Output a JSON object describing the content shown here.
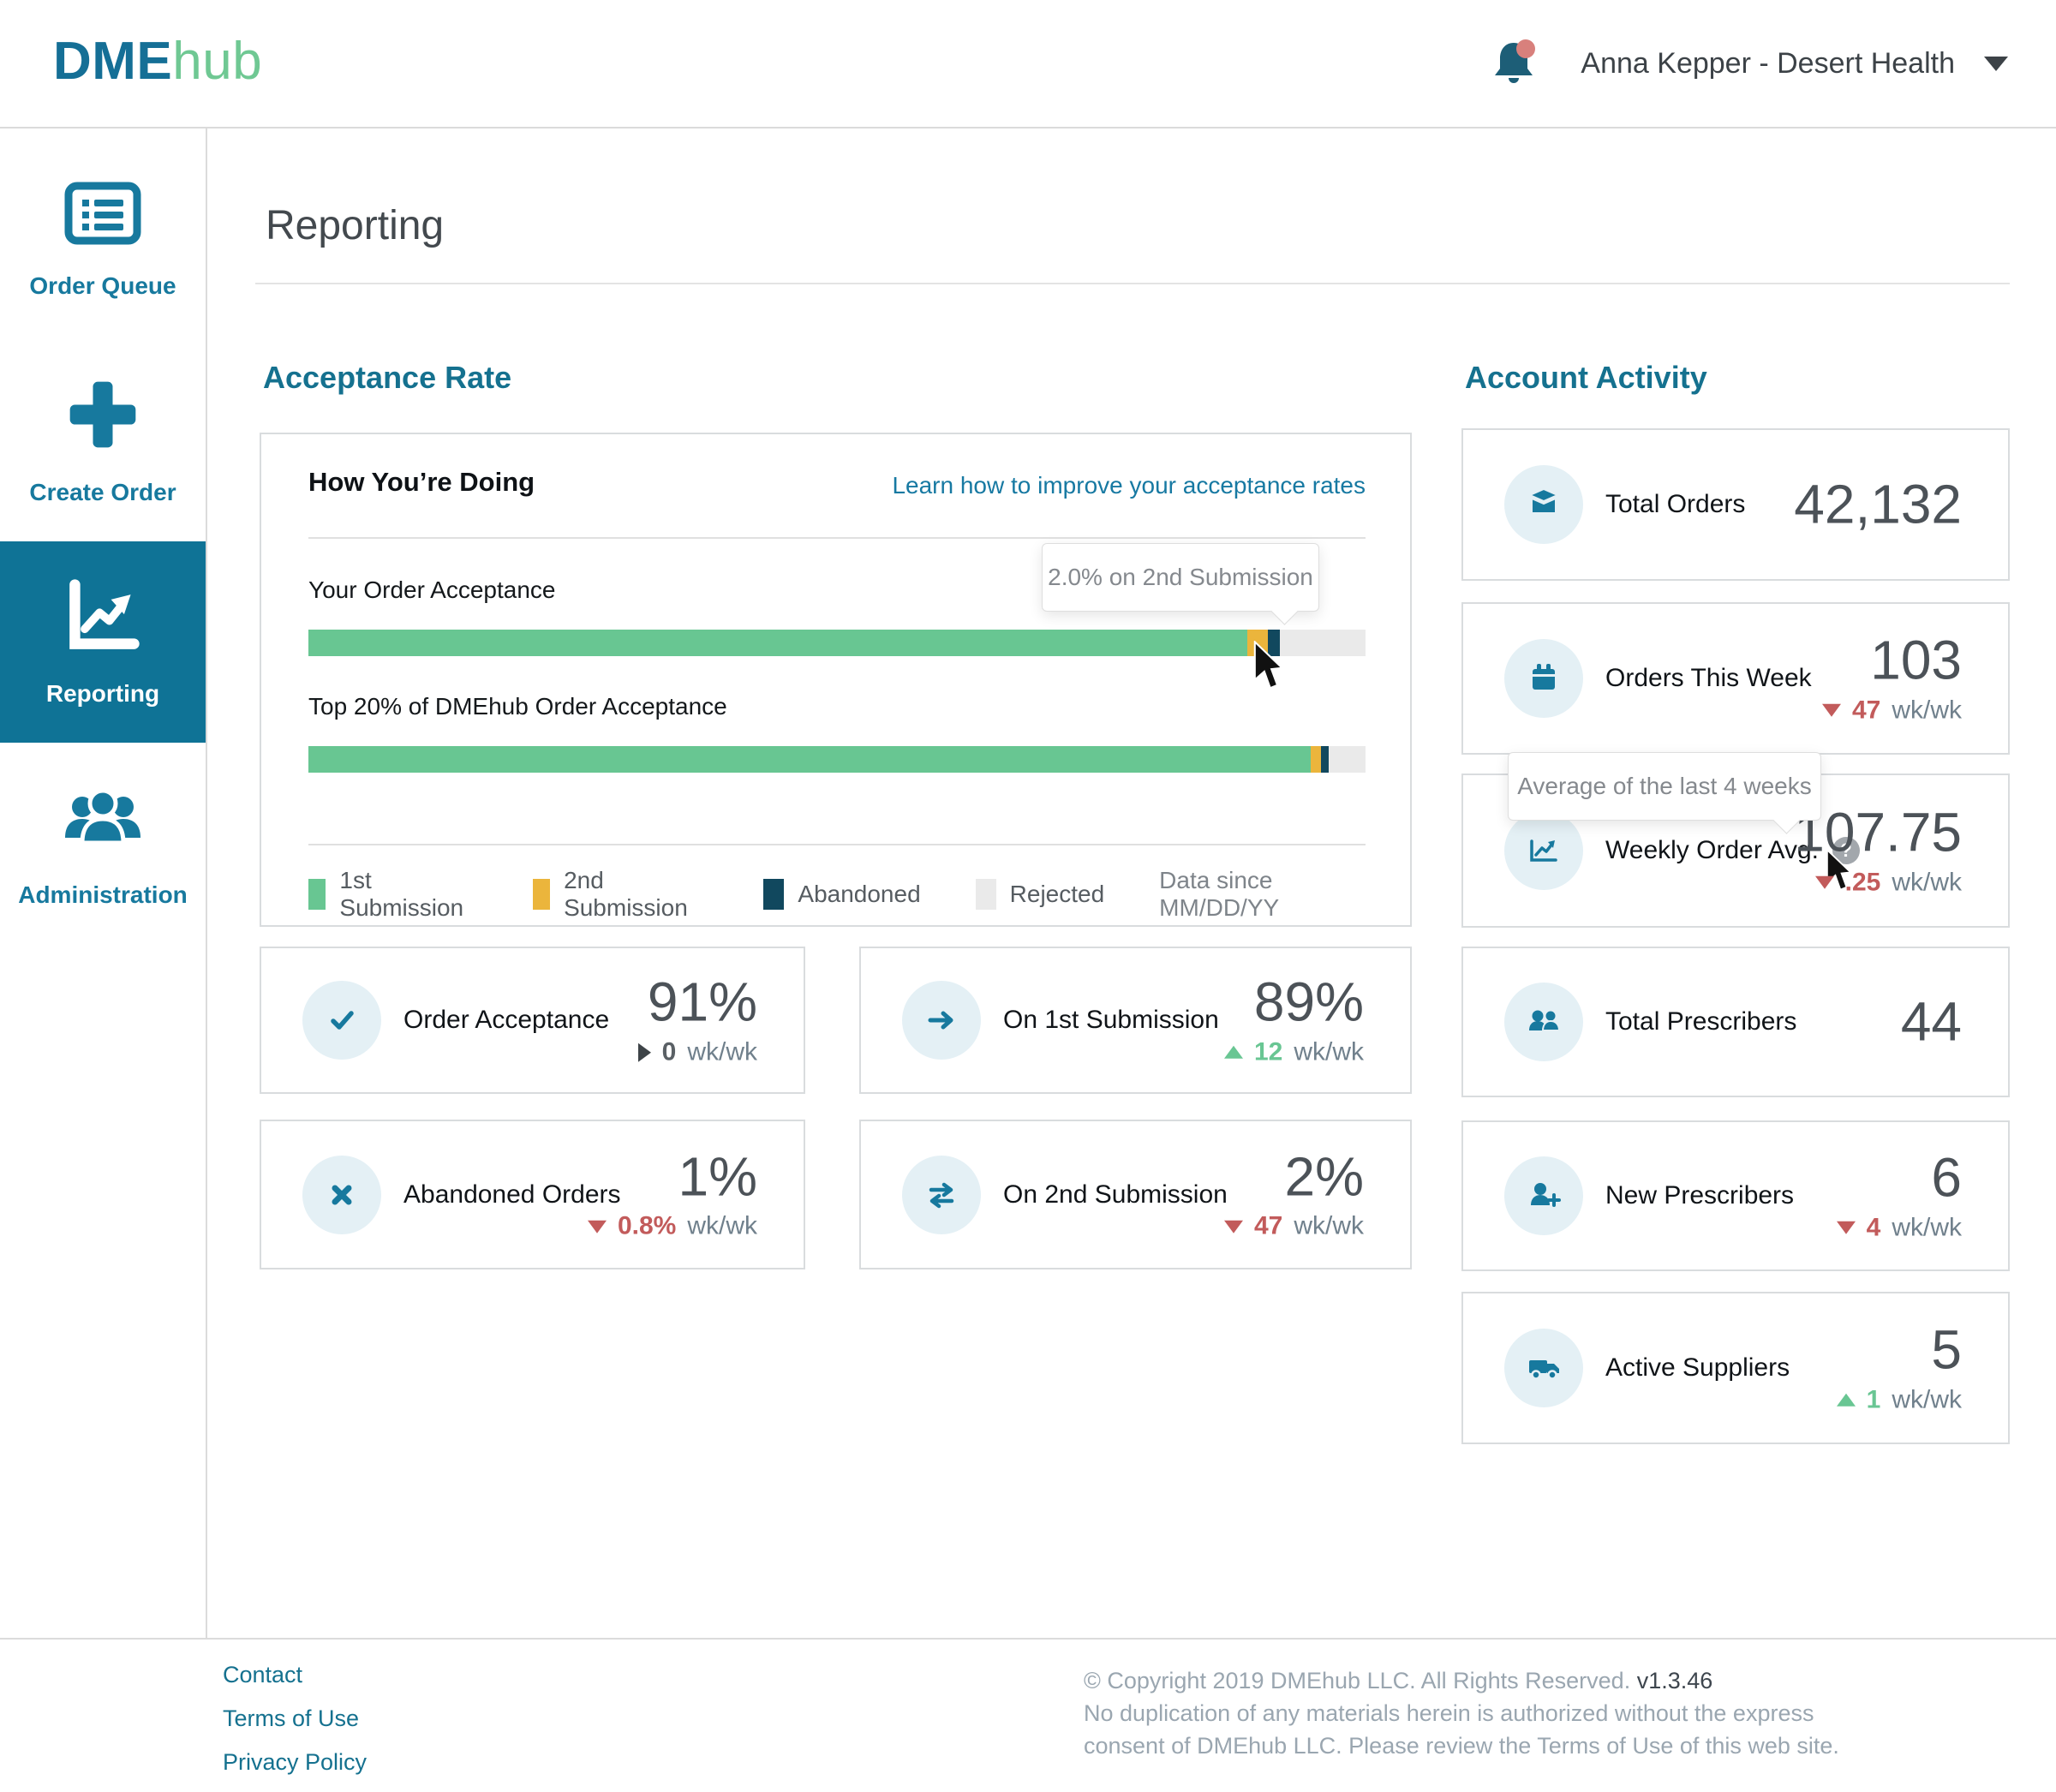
{
  "header": {
    "logo_part1": "DME",
    "logo_part2": "hub",
    "user_name": "Anna Kepper - Desert Health"
  },
  "sidebar": {
    "items": [
      {
        "label": "Order Queue",
        "active": false
      },
      {
        "label": "Create Order",
        "active": false
      },
      {
        "label": "Reporting",
        "active": true
      },
      {
        "label": "Administration",
        "active": false
      }
    ]
  },
  "page": {
    "title": "Reporting"
  },
  "acceptance_rate": {
    "section_title": "Acceptance Rate",
    "card": {
      "title": "How You’re Doing",
      "link_label": "Learn how to improve your acceptance rates",
      "tooltip": "2.0% on 2nd Submission",
      "bars": [
        {
          "label": "Your Order Acceptance",
          "first_pct": 88.8,
          "second_pct": 2.0,
          "abandoned_pct": 1.1,
          "rejected_pct": 8.1
        },
        {
          "label": "Top 20% of DMEhub Order Acceptance",
          "first_pct": 94.8,
          "second_pct": 1.0,
          "abandoned_pct": 0.7,
          "rejected_pct": 3.5
        }
      ],
      "legend": [
        {
          "label": "1st Submission",
          "color": "#68C692"
        },
        {
          "label": "2nd Submission",
          "color": "#EBB53C"
        },
        {
          "label": "Abandoned",
          "color": "#11485E"
        },
        {
          "label": "Rejected",
          "color": "#EAEAEA"
        }
      ],
      "data_since": "Data since MM/DD/YY"
    },
    "stats": [
      {
        "label": "Order Acceptance",
        "value": "91%",
        "delta": "0",
        "delta_dir": "flat",
        "unit": "wk/wk"
      },
      {
        "label": "On 1st Submission",
        "value": "89%",
        "delta": "12",
        "delta_dir": "up",
        "unit": "wk/wk"
      },
      {
        "label": "Abandoned Orders",
        "value": "1%",
        "delta": "0.8%",
        "delta_dir": "down",
        "unit": "wk/wk"
      },
      {
        "label": "On 2nd Submission",
        "value": "2%",
        "delta": "47",
        "delta_dir": "down",
        "unit": "wk/wk"
      }
    ]
  },
  "account_activity": {
    "section_title": "Account Activity",
    "tooltip": "Average of the last 4 weeks",
    "cards": [
      {
        "label": "Total Orders",
        "value": "42,132"
      },
      {
        "label": "Orders This Week",
        "value": "103",
        "delta": "47",
        "delta_dir": "down",
        "unit": "wk/wk"
      },
      {
        "label": "Weekly Order Avg.",
        "value": "107.75",
        "delta": ".25",
        "delta_dir": "down",
        "unit": "wk/wk",
        "help": "?"
      },
      {
        "label": "Total Prescribers",
        "value": "44"
      },
      {
        "label": "New Prescribers",
        "value": "6",
        "delta": "4",
        "delta_dir": "down",
        "unit": "wk/wk"
      },
      {
        "label": "Active Suppliers",
        "value": "5",
        "delta": "1",
        "delta_dir": "up",
        "unit": "wk/wk"
      }
    ]
  },
  "footer": {
    "links": [
      "Contact",
      "Terms of Use",
      "Privacy Policy"
    ],
    "copyright": "© Copyright 2019 DMEhub LLC. All Rights Reserved.",
    "version": "v1.3.46",
    "disclaimer": "No duplication of any materials herein is authorized without the express consent of DMEhub LLC. Please review the Terms of Use of this web site."
  },
  "colors": {
    "brand_teal": "#17799E",
    "section_heading": "#15718F",
    "sidebar_active_bg": "#0F7396",
    "logo_blue": "#156F96",
    "logo_green": "#6FC893",
    "bar_green": "#68C692",
    "bar_yellow": "#EBB53C",
    "bar_navy": "#11485E",
    "bar_gray": "#EAEAEA",
    "positive": "#69C693",
    "negative": "#C25B5B",
    "icon_circle_bg": "#E4F0F5",
    "bell_badge": "#D8807C"
  }
}
